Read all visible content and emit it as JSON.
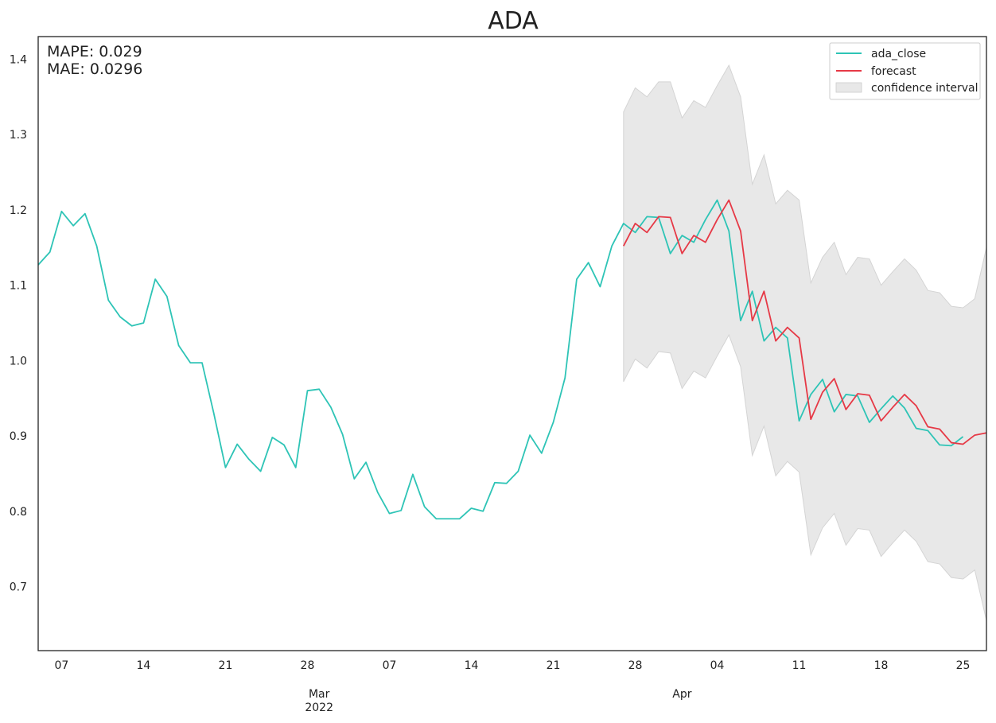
{
  "chart_data": {
    "type": "line",
    "title": "ADA",
    "xlabel": "",
    "ylabel": "",
    "xlim": [
      "2022-02-05",
      "2022-04-27"
    ],
    "ylim": [
      0.615,
      1.43
    ],
    "grid": false,
    "legend_position": "top-right",
    "annotations": [
      "MAPE: 0.029",
      "MAE: 0.0296"
    ],
    "x_ticks": [
      {
        "date": "2022-02-07",
        "label": "07"
      },
      {
        "date": "2022-02-14",
        "label": "14"
      },
      {
        "date": "2022-02-21",
        "label": "21"
      },
      {
        "date": "2022-02-28",
        "label": "28"
      },
      {
        "date": "2022-03-07",
        "label": "07"
      },
      {
        "date": "2022-03-14",
        "label": "14"
      },
      {
        "date": "2022-03-21",
        "label": "21"
      },
      {
        "date": "2022-03-28",
        "label": "28"
      },
      {
        "date": "2022-04-04",
        "label": "04"
      },
      {
        "date": "2022-04-11",
        "label": "11"
      },
      {
        "date": "2022-04-18",
        "label": "18"
      },
      {
        "date": "2022-04-25",
        "label": "25"
      }
    ],
    "x_major_labels": [
      {
        "date": "2022-03-01",
        "lines": [
          "Mar",
          "2022"
        ]
      },
      {
        "date": "2022-04-01",
        "lines": [
          "Apr"
        ]
      }
    ],
    "y_ticks": [
      0.7,
      0.8,
      0.9,
      1.0,
      1.1,
      1.2,
      1.3,
      1.4
    ],
    "colors": {
      "ada_close": "#2ec4b6",
      "forecast": "#e63946",
      "confidence_interval": "#e8e8e8"
    },
    "series": [
      {
        "name": "ada_close",
        "x": [
          "2022-02-05",
          "2022-02-06",
          "2022-02-07",
          "2022-02-08",
          "2022-02-09",
          "2022-02-10",
          "2022-02-11",
          "2022-02-12",
          "2022-02-13",
          "2022-02-14",
          "2022-02-15",
          "2022-02-16",
          "2022-02-17",
          "2022-02-18",
          "2022-02-19",
          "2022-02-20",
          "2022-02-21",
          "2022-02-22",
          "2022-02-23",
          "2022-02-24",
          "2022-02-25",
          "2022-02-26",
          "2022-02-27",
          "2022-02-28",
          "2022-03-01",
          "2022-03-02",
          "2022-03-03",
          "2022-03-04",
          "2022-03-05",
          "2022-03-06",
          "2022-03-07",
          "2022-03-08",
          "2022-03-09",
          "2022-03-10",
          "2022-03-11",
          "2022-03-12",
          "2022-03-13",
          "2022-03-14",
          "2022-03-15",
          "2022-03-16",
          "2022-03-17",
          "2022-03-18",
          "2022-03-19",
          "2022-03-20",
          "2022-03-21",
          "2022-03-22",
          "2022-03-23",
          "2022-03-24",
          "2022-03-25",
          "2022-03-26",
          "2022-03-27",
          "2022-03-28",
          "2022-03-29",
          "2022-03-30",
          "2022-03-31",
          "2022-04-01",
          "2022-04-02",
          "2022-04-03",
          "2022-04-04",
          "2022-04-05",
          "2022-04-06",
          "2022-04-07",
          "2022-04-08",
          "2022-04-09",
          "2022-04-10",
          "2022-04-11",
          "2022-04-12",
          "2022-04-13",
          "2022-04-14",
          "2022-04-15",
          "2022-04-16",
          "2022-04-17",
          "2022-04-18",
          "2022-04-19",
          "2022-04-20",
          "2022-04-21",
          "2022-04-22",
          "2022-04-23",
          "2022-04-24",
          "2022-04-25"
        ],
        "values": [
          1.127,
          1.144,
          1.198,
          1.179,
          1.195,
          1.152,
          1.08,
          1.058,
          1.046,
          1.05,
          1.108,
          1.085,
          1.02,
          0.997,
          0.997,
          0.93,
          0.858,
          0.889,
          0.869,
          0.853,
          0.898,
          0.888,
          0.858,
          0.96,
          0.962,
          0.938,
          0.902,
          0.843,
          0.865,
          0.825,
          0.797,
          0.801,
          0.849,
          0.806,
          0.79,
          0.79,
          0.79,
          0.804,
          0.8,
          0.838,
          0.837,
          0.853,
          0.901,
          0.877,
          0.918,
          0.977,
          1.108,
          1.13,
          1.098,
          1.152,
          1.182,
          1.17,
          1.191,
          1.19,
          1.142,
          1.166,
          1.157,
          1.187,
          1.213,
          1.172,
          1.053,
          1.092,
          1.026,
          1.044,
          1.03,
          0.92,
          0.955,
          0.975,
          0.932,
          0.955,
          0.953,
          0.918,
          0.936,
          0.953,
          0.937,
          0.91,
          0.907,
          0.888,
          0.887,
          0.899
        ]
      },
      {
        "name": "forecast",
        "x": [
          "2022-03-27",
          "2022-03-28",
          "2022-03-29",
          "2022-03-30",
          "2022-03-31",
          "2022-04-01",
          "2022-04-02",
          "2022-04-03",
          "2022-04-04",
          "2022-04-05",
          "2022-04-06",
          "2022-04-07",
          "2022-04-08",
          "2022-04-09",
          "2022-04-10",
          "2022-04-11",
          "2022-04-12",
          "2022-04-13",
          "2022-04-14",
          "2022-04-15",
          "2022-04-16",
          "2022-04-17",
          "2022-04-18",
          "2022-04-19",
          "2022-04-20",
          "2022-04-21",
          "2022-04-22",
          "2022-04-23",
          "2022-04-24",
          "2022-04-25",
          "2022-04-26",
          "2022-04-27"
        ],
        "values": [
          1.152,
          1.182,
          1.17,
          1.191,
          1.19,
          1.142,
          1.166,
          1.157,
          1.187,
          1.213,
          1.172,
          1.053,
          1.092,
          1.026,
          1.044,
          1.03,
          0.922,
          0.958,
          0.976,
          0.935,
          0.956,
          0.954,
          0.92,
          0.938,
          0.955,
          0.94,
          0.912,
          0.909,
          0.891,
          0.889,
          0.901,
          0.904
        ]
      }
    ],
    "confidence_interval": {
      "name": "confidence interval",
      "x": [
        "2022-03-27",
        "2022-03-28",
        "2022-03-29",
        "2022-03-30",
        "2022-03-31",
        "2022-04-01",
        "2022-04-02",
        "2022-04-03",
        "2022-04-04",
        "2022-04-05",
        "2022-04-06",
        "2022-04-07",
        "2022-04-08",
        "2022-04-09",
        "2022-04-10",
        "2022-04-11",
        "2022-04-12",
        "2022-04-13",
        "2022-04-14",
        "2022-04-15",
        "2022-04-16",
        "2022-04-17",
        "2022-04-18",
        "2022-04-19",
        "2022-04-20",
        "2022-04-21",
        "2022-04-22",
        "2022-04-23",
        "2022-04-24",
        "2022-04-25",
        "2022-04-26",
        "2022-04-27"
      ],
      "upper": [
        1.33,
        1.362,
        1.35,
        1.37,
        1.37,
        1.322,
        1.345,
        1.336,
        1.365,
        1.392,
        1.35,
        1.234,
        1.273,
        1.208,
        1.226,
        1.213,
        1.103,
        1.137,
        1.157,
        1.114,
        1.137,
        1.135,
        1.1,
        1.118,
        1.135,
        1.12,
        1.093,
        1.09,
        1.072,
        1.07,
        1.082,
        1.15
      ],
      "lower": [
        0.972,
        1.002,
        0.99,
        1.012,
        1.01,
        0.963,
        0.986,
        0.977,
        1.006,
        1.034,
        0.992,
        0.874,
        0.913,
        0.847,
        0.866,
        0.852,
        0.742,
        0.778,
        0.797,
        0.755,
        0.777,
        0.775,
        0.74,
        0.758,
        0.775,
        0.76,
        0.733,
        0.73,
        0.712,
        0.71,
        0.722,
        0.655
      ]
    },
    "legend": [
      "ada_close",
      "forecast",
      "confidence interval"
    ]
  }
}
